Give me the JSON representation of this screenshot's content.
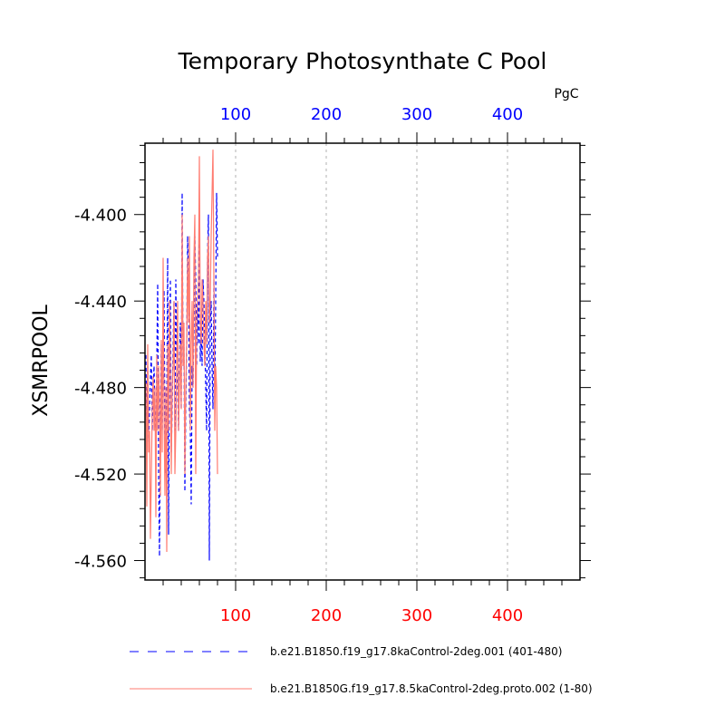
{
  "chart_data": {
    "type": "line",
    "title": "Temporary Photosynthate C Pool",
    "units": "PgC",
    "ylabel": "XSMRPOOL",
    "xlim": [
      0,
      480
    ],
    "ylim": [
      -4.569,
      -4.367
    ],
    "x_ticks": [
      100,
      200,
      300,
      400
    ],
    "x_tick_labels": [
      "100",
      "200",
      "300",
      "400"
    ],
    "y_ticks": [
      -4.56,
      -4.52,
      -4.48,
      -4.44,
      -4.4
    ],
    "y_tick_labels": [
      "-4.560",
      "-4.520",
      "-4.480",
      "-4.440",
      "-4.400"
    ],
    "grid": "vertical dashed at major x ticks",
    "legend_position": "bottom",
    "colors": {
      "series1": "#0000ff",
      "series2": "#ff7b70",
      "bottom_ticks": "#ff0000",
      "top_ticks": "#0000ff",
      "grid": "#b0b0b0"
    },
    "series": [
      {
        "name": "b.e21.B1850.f19_g17.8kaControl-2deg.001 (401-480)",
        "style": "dashed",
        "color": "#0000ff",
        "x": [
          1,
          2,
          3,
          4,
          5,
          6,
          7,
          8,
          9,
          10,
          11,
          12,
          13,
          14,
          15,
          16,
          17,
          18,
          19,
          20,
          21,
          22,
          23,
          24,
          25,
          26,
          27,
          28,
          29,
          30,
          31,
          32,
          33,
          34,
          35,
          36,
          37,
          38,
          39,
          40,
          41,
          42,
          43,
          44,
          45,
          46,
          47,
          48,
          49,
          50,
          51,
          52,
          53,
          54,
          55,
          56,
          57,
          58,
          59,
          60,
          61,
          62,
          63,
          64,
          65,
          66,
          67,
          68,
          69,
          70,
          71,
          72,
          73,
          74,
          75,
          76,
          77,
          78,
          79,
          80
        ],
        "y": [
          -4.465,
          -4.5,
          -4.47,
          -4.505,
          -4.49,
          -4.475,
          -4.465,
          -4.5,
          -4.48,
          -4.47,
          -4.49,
          -4.505,
          -4.468,
          -4.432,
          -4.52,
          -4.558,
          -4.49,
          -4.46,
          -4.5,
          -4.47,
          -4.435,
          -4.5,
          -4.52,
          -4.49,
          -4.42,
          -4.548,
          -4.47,
          -4.43,
          -4.51,
          -4.49,
          -4.46,
          -4.44,
          -4.5,
          -4.43,
          -4.47,
          -4.48,
          -4.5,
          -4.47,
          -4.45,
          -4.49,
          -4.39,
          -4.47,
          -4.46,
          -4.528,
          -4.49,
          -4.46,
          -4.41,
          -4.43,
          -4.49,
          -4.5,
          -4.534,
          -4.47,
          -4.48,
          -4.45,
          -4.41,
          -4.43,
          -4.47,
          -4.44,
          -4.46,
          -4.4,
          -4.468,
          -4.45,
          -4.47,
          -4.43,
          -4.44,
          -4.46,
          -4.48,
          -4.5,
          -4.42,
          -4.4,
          -4.56,
          -4.45,
          -4.44,
          -4.47,
          -4.49,
          -4.43,
          -4.49,
          -4.44,
          -4.39,
          -4.42
        ]
      },
      {
        "name": "b.e21.B1850G.f19_g17.8.5kaControl-2deg.proto.002 (1-80)",
        "style": "solid",
        "color": "#ff7b70",
        "x": [
          1,
          2,
          3,
          4,
          5,
          6,
          7,
          8,
          9,
          10,
          11,
          12,
          13,
          14,
          15,
          16,
          17,
          18,
          19,
          20,
          21,
          22,
          23,
          24,
          25,
          26,
          27,
          28,
          29,
          30,
          31,
          32,
          33,
          34,
          35,
          36,
          37,
          38,
          39,
          40,
          41,
          42,
          43,
          44,
          45,
          46,
          47,
          48,
          49,
          50,
          51,
          52,
          53,
          54,
          55,
          56,
          57,
          58,
          59,
          60,
          61,
          62,
          63,
          64,
          65,
          66,
          67,
          68,
          69,
          70,
          71,
          72,
          73,
          74,
          75,
          76,
          77,
          78,
          79,
          80
        ],
        "y": [
          -4.478,
          -4.535,
          -4.46,
          -4.51,
          -4.5,
          -4.55,
          -4.52,
          -4.49,
          -4.475,
          -4.5,
          -4.48,
          -4.54,
          -4.465,
          -4.5,
          -4.47,
          -4.49,
          -4.53,
          -4.458,
          -4.51,
          -4.42,
          -4.49,
          -4.53,
          -4.48,
          -4.556,
          -4.46,
          -4.5,
          -4.44,
          -4.47,
          -4.52,
          -4.48,
          -4.47,
          -4.44,
          -4.52,
          -4.5,
          -4.47,
          -4.44,
          -4.5,
          -4.48,
          -4.46,
          -4.49,
          -4.4,
          -4.47,
          -4.45,
          -4.52,
          -4.48,
          -4.46,
          -4.42,
          -4.45,
          -4.41,
          -4.5,
          -4.46,
          -4.44,
          -4.48,
          -4.42,
          -4.4,
          -4.52,
          -4.45,
          -4.44,
          -4.43,
          -4.373,
          -4.45,
          -4.46,
          -4.43,
          -4.44,
          -4.46,
          -4.47,
          -4.44,
          -4.46,
          -4.42,
          -4.41,
          -4.45,
          -4.44,
          -4.41,
          -4.39,
          -4.37,
          -4.43,
          -4.5,
          -4.47,
          -4.48,
          -4.52
        ]
      }
    ]
  }
}
